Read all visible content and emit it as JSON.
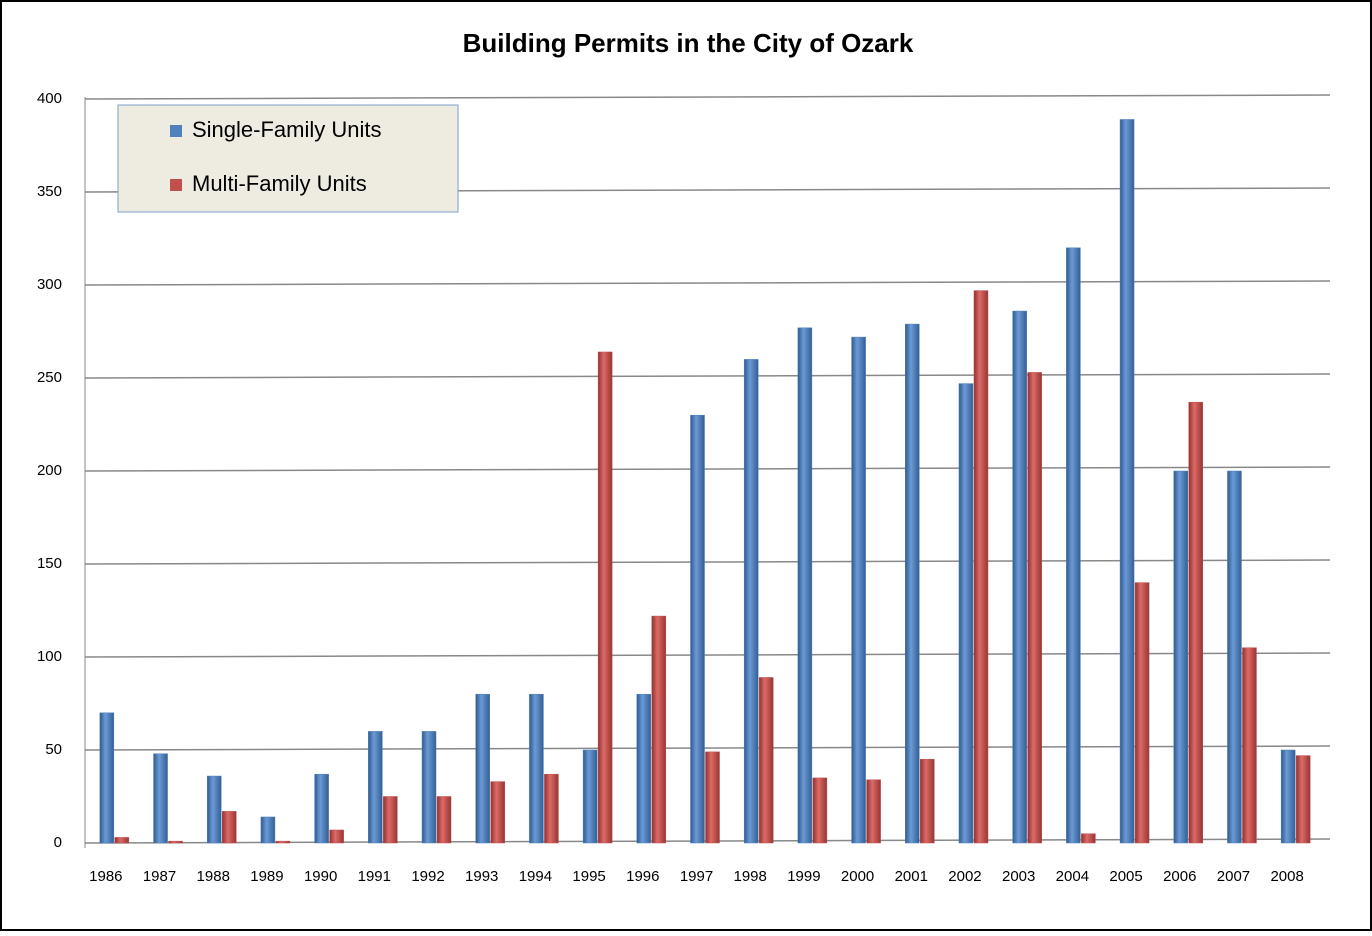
{
  "chart_data": {
    "type": "bar",
    "title": "Building Permits in the City of Ozark",
    "categories": [
      "1986",
      "1987",
      "1988",
      "1989",
      "1990",
      "1991",
      "1992",
      "1993",
      "1994",
      "1995",
      "1996",
      "1997",
      "1998",
      "1999",
      "2000",
      "2001",
      "2002",
      "2003",
      "2004",
      "2005",
      "2006",
      "2007",
      "2008"
    ],
    "series": [
      {
        "name": "Single-Family Units",
        "color": "#4f81bd",
        "values": [
          70,
          48,
          36,
          14,
          37,
          60,
          60,
          80,
          80,
          50,
          80,
          230,
          260,
          277,
          272,
          279,
          247,
          286,
          320,
          389,
          200,
          200,
          50
        ]
      },
      {
        "name": "Multi-Family Units",
        "color": "#c0504d",
        "values": [
          3,
          1,
          17,
          1,
          7,
          25,
          25,
          33,
          37,
          264,
          122,
          49,
          89,
          35,
          34,
          45,
          297,
          253,
          5,
          140,
          237,
          105,
          47
        ]
      }
    ],
    "ylim": [
      0,
      400
    ],
    "yticks": [
      0,
      50,
      100,
      150,
      200,
      250,
      300,
      350,
      400
    ],
    "grid": true,
    "legend": "top-left"
  }
}
